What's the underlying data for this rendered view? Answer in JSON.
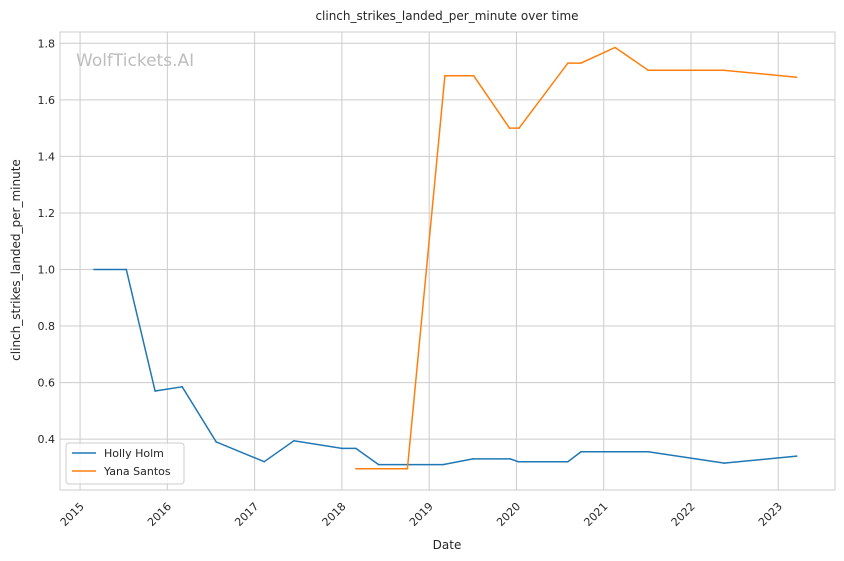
{
  "chart_data": {
    "type": "line",
    "title": "clinch_strikes_landed_per_minute over time",
    "xlabel": "Date",
    "ylabel": "clinch_strikes_landed_per_minute",
    "watermark": "WolfTickets.AI",
    "xlim": [
      2014.77,
      2023.65
    ],
    "ylim": [
      0.22,
      1.84
    ],
    "xticks": [
      2015,
      2016,
      2017,
      2018,
      2019,
      2020,
      2021,
      2022,
      2023
    ],
    "yticks": [
      0.4,
      0.6,
      0.8,
      1.0,
      1.2,
      1.4,
      1.6,
      1.8
    ],
    "ytick_labels": [
      "0.4",
      "0.6",
      "0.8",
      "1.0",
      "1.2",
      "1.4",
      "1.6",
      "1.8"
    ],
    "grid": true,
    "legend": "lower-left",
    "series": [
      {
        "name": "Holly Holm",
        "color": "#1f77b4",
        "x": [
          2015.16,
          2015.53,
          2015.86,
          2016.17,
          2016.56,
          2017.11,
          2017.45,
          2018.0,
          2018.16,
          2018.42,
          2019.16,
          2019.5,
          2019.93,
          2020.02,
          2020.59,
          2020.74,
          2021.51,
          2022.38,
          2023.21
        ],
        "y": [
          1.0,
          1.0,
          0.57,
          0.585,
          0.39,
          0.32,
          0.394,
          0.367,
          0.367,
          0.31,
          0.31,
          0.33,
          0.33,
          0.32,
          0.32,
          0.355,
          0.355,
          0.315,
          0.34
        ]
      },
      {
        "name": "Yana Santos",
        "color": "#ff7f0e",
        "x": [
          2018.16,
          2018.75,
          2019.18,
          2019.51,
          2019.92,
          2020.03,
          2020.59,
          2020.74,
          2021.13,
          2021.51,
          2022.37,
          2023.21
        ],
        "y": [
          0.295,
          0.295,
          1.685,
          1.685,
          1.5,
          1.5,
          1.73,
          1.73,
          1.785,
          1.705,
          1.705,
          1.68
        ]
      }
    ]
  }
}
